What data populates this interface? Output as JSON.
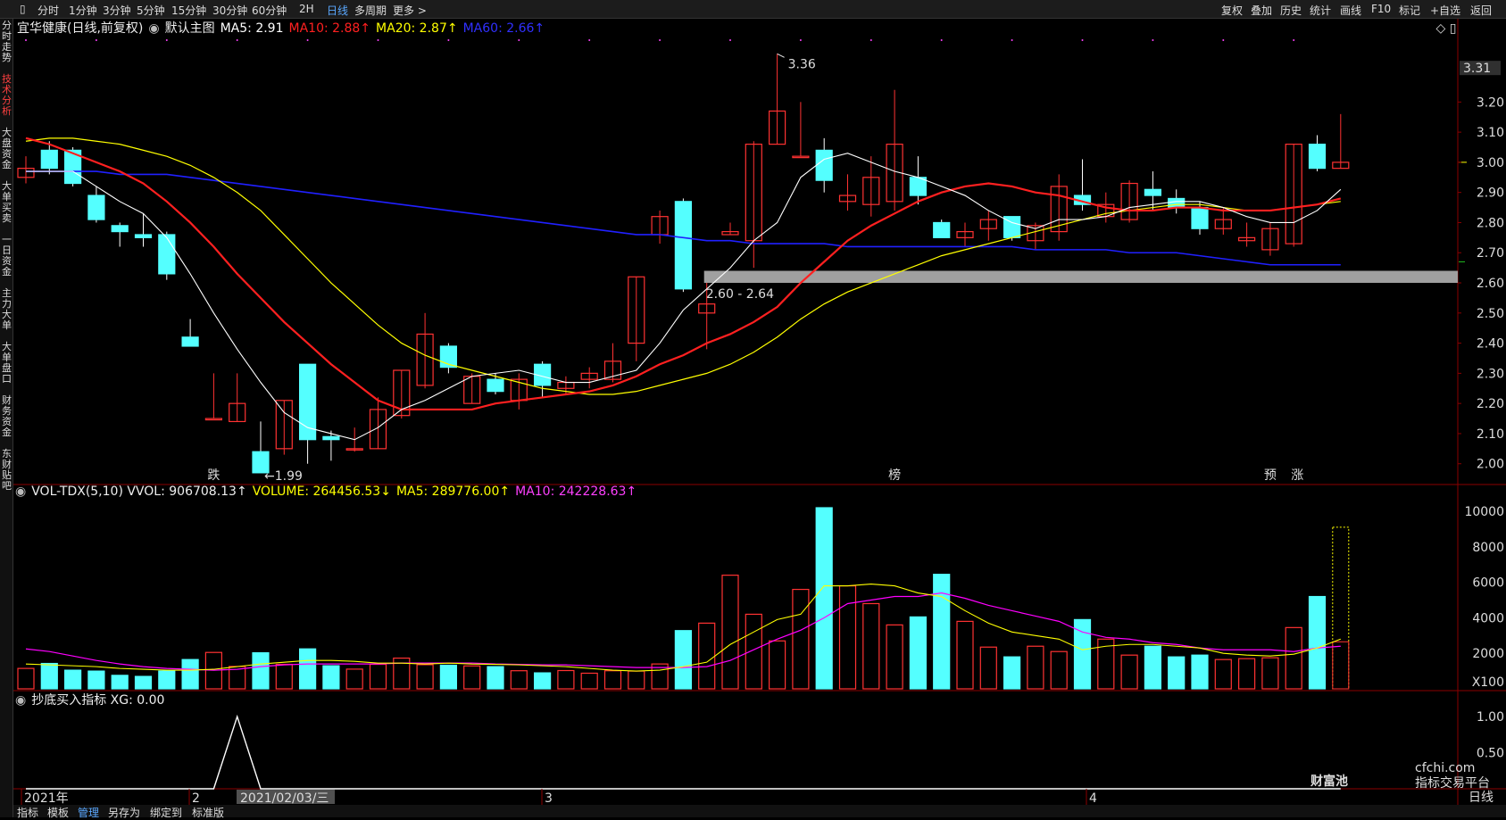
{
  "topbar": {
    "periods": [
      "分时",
      "1分钟",
      "3分钟",
      "5分钟",
      "15分钟",
      "30分钟",
      "60分钟",
      "2H",
      "日线",
      "多周期",
      "更多 >"
    ],
    "selected_period": "日线",
    "right_tools": [
      "复权",
      "叠加",
      "历史",
      "统计",
      "画线",
      "F10",
      "标记",
      "+自选",
      "返回"
    ]
  },
  "leftbar": {
    "items": [
      "分时走势",
      "技术分析",
      "大盘资金",
      "大单买卖",
      "一日资金",
      "主力大单",
      "大单盘口",
      "财务资金",
      "东财贴吧"
    ],
    "selected": "技术分析"
  },
  "main_legend": {
    "stock": "宜华健康(日线,前复权)",
    "template": "默认主图",
    "ma5": "MA5: 2.91",
    "ma10": "MA10: 2.88↑",
    "ma20": "MA20: 2.87↑",
    "ma60": "MA60: 2.66↑"
  },
  "vol_legend": {
    "name": "VOL-TDX(5,10) VVOL: 906708.13↑",
    "volume": "VOLUME: 264456.53↓",
    "ma5": "MA5: 289776.00↑",
    "ma10": "MA10: 242228.63↑"
  },
  "ind_legend": {
    "name": "抄底买入指标 XG: 0.00"
  },
  "annotations": {
    "high": "3.36",
    "low": "←1.99",
    "zone": "2.60 - 2.64",
    "last_price": "3.31",
    "marker_die": "跌",
    "marker_bang": "榜",
    "marker_yu": "预",
    "marker_zhang": "涨"
  },
  "price_axis": [
    "3.20",
    "3.10",
    "3.00",
    "2.90",
    "2.80",
    "2.70",
    "2.60",
    "2.50",
    "2.40",
    "2.30",
    "2.20",
    "2.10",
    "2.00"
  ],
  "vol_axis": [
    "10000",
    "8000",
    "6000",
    "4000",
    "2000",
    "X100"
  ],
  "ind_axis": [
    "1.00",
    "0.50"
  ],
  "date_axis": [
    "2021年",
    "2",
    "3",
    "4"
  ],
  "cursor_date": "2021/02/03/三",
  "period_label": "日线",
  "bottom_tabs": [
    "指标",
    "模板",
    "管理",
    "另存为",
    "绑定到",
    "标准版"
  ],
  "bottom_tabs_selected": "管理",
  "watermark": {
    "brand": "财富池",
    "domain": "cfchi.com",
    "slogan": "指标交易平台"
  },
  "colors": {
    "up": "#ff3232",
    "down": "#54ffff",
    "ma5": "#ffffff",
    "ma10": "#ff2020",
    "ma20": "#ffff00",
    "ma60": "#2020ff",
    "vol_ma10": "#ff00ff"
  },
  "chart_data": {
    "type": "candlestick",
    "candles": [
      [
        2.95,
        2.98,
        3.02,
        2.93
      ],
      [
        3.04,
        2.98,
        3.07,
        2.96
      ],
      [
        3.04,
        2.93,
        3.05,
        2.92
      ],
      [
        2.89,
        2.81,
        2.92,
        2.8
      ],
      [
        2.79,
        2.77,
        2.8,
        2.72
      ],
      [
        2.76,
        2.75,
        2.83,
        2.72
      ],
      [
        2.76,
        2.63,
        2.77,
        2.61
      ],
      [
        2.42,
        2.39,
        2.48,
        2.39
      ],
      [
        2.15,
        2.15,
        2.3,
        2.15
      ],
      [
        2.14,
        2.2,
        2.3,
        2.14
      ],
      [
        2.04,
        1.97,
        2.14,
        1.99
      ],
      [
        2.05,
        2.21,
        2.21,
        2.03
      ],
      [
        2.33,
        2.08,
        2.33,
        2.0
      ],
      [
        2.09,
        2.08,
        2.11,
        2.01
      ],
      [
        2.05,
        2.05,
        2.12,
        2.04
      ],
      [
        2.05,
        2.18,
        2.22,
        2.05
      ],
      [
        2.16,
        2.31,
        2.31,
        2.15
      ],
      [
        2.26,
        2.43,
        2.5,
        2.25
      ],
      [
        2.39,
        2.32,
        2.4,
        2.3
      ],
      [
        2.2,
        2.29,
        2.3,
        2.2
      ],
      [
        2.28,
        2.24,
        2.3,
        2.23
      ],
      [
        2.21,
        2.28,
        2.3,
        2.18
      ],
      [
        2.33,
        2.26,
        2.34,
        2.22
      ],
      [
        2.25,
        2.27,
        2.29,
        2.23
      ],
      [
        2.28,
        2.3,
        2.32,
        2.25
      ],
      [
        2.28,
        2.34,
        2.4,
        2.27
      ],
      [
        2.4,
        2.62,
        2.62,
        2.34
      ],
      [
        2.76,
        2.82,
        2.84,
        2.73
      ],
      [
        2.87,
        2.58,
        2.88,
        2.57
      ],
      [
        2.5,
        2.53,
        2.6,
        2.38
      ],
      [
        2.76,
        2.77,
        2.8,
        2.76
      ],
      [
        2.74,
        3.06,
        3.07,
        2.65
      ],
      [
        3.06,
        3.17,
        3.36,
        3.06
      ],
      [
        3.02,
        3.02,
        3.2,
        3.02
      ],
      [
        3.04,
        2.94,
        3.08,
        2.9
      ],
      [
        2.87,
        2.89,
        2.96,
        2.84
      ],
      [
        2.86,
        2.95,
        3.02,
        2.82
      ],
      [
        2.87,
        3.06,
        3.24,
        2.84
      ],
      [
        2.95,
        2.89,
        3.02,
        2.86
      ],
      [
        2.8,
        2.75,
        2.81,
        2.75
      ],
      [
        2.75,
        2.77,
        2.8,
        2.72
      ],
      [
        2.78,
        2.81,
        2.84,
        2.74
      ],
      [
        2.82,
        2.75,
        2.82,
        2.74
      ],
      [
        2.74,
        2.79,
        2.8,
        2.71
      ],
      [
        2.77,
        2.92,
        2.96,
        2.74
      ],
      [
        2.89,
        2.86,
        3.01,
        2.84
      ],
      [
        2.82,
        2.86,
        2.9,
        2.8
      ],
      [
        2.81,
        2.93,
        2.94,
        2.8
      ],
      [
        2.91,
        2.89,
        2.97,
        2.84
      ],
      [
        2.88,
        2.85,
        2.91,
        2.83
      ],
      [
        2.85,
        2.78,
        2.87,
        2.76
      ],
      [
        2.78,
        2.81,
        2.85,
        2.76
      ],
      [
        2.74,
        2.75,
        2.8,
        2.72
      ],
      [
        2.71,
        2.78,
        2.8,
        2.69
      ],
      [
        2.73,
        3.06,
        3.06,
        2.72
      ],
      [
        3.06,
        2.98,
        3.09,
        2.97
      ],
      [
        2.98,
        3.0,
        3.16,
        2.98
      ]
    ],
    "volume_x100": [
      1150,
      1430,
      1050,
      1000,
      760,
      700,
      1000,
      1650,
      2050,
      1260,
      2030,
      1380,
      2250,
      1300,
      1110,
      1380,
      1730,
      1360,
      1330,
      1290,
      1250,
      1020,
      900,
      1030,
      880,
      1020,
      1000,
      1400,
      3280,
      3700,
      6400,
      4200,
      2700,
      5600,
      10200,
      5800,
      4800,
      3600,
      4050,
      6450,
      3800,
      2350,
      1800,
      2400,
      2100,
      3900,
      2800,
      1900,
      2400,
      1800,
      1900,
      1650,
      1700,
      1750,
      3450,
      5200,
      9100
    ],
    "ma5": [
      2.97,
      2.97,
      2.97,
      2.92,
      2.87,
      2.83,
      2.75,
      2.63,
      2.5,
      2.38,
      2.27,
      2.17,
      2.12,
      2.1,
      2.08,
      2.12,
      2.18,
      2.21,
      2.25,
      2.29,
      2.3,
      2.31,
      2.29,
      2.27,
      2.27,
      2.29,
      2.31,
      2.4,
      2.51,
      2.58,
      2.65,
      2.74,
      2.8,
      2.95,
      3.01,
      3.03,
      3.0,
      2.97,
      2.95,
      2.92,
      2.89,
      2.84,
      2.8,
      2.78,
      2.81,
      2.81,
      2.82,
      2.85,
      2.86,
      2.87,
      2.87,
      2.85,
      2.82,
      2.8,
      2.8,
      2.84,
      2.91
    ],
    "ma10": [
      3.08,
      3.06,
      3.03,
      3.0,
      2.97,
      2.93,
      2.87,
      2.8,
      2.72,
      2.63,
      2.55,
      2.47,
      2.4,
      2.33,
      2.27,
      2.21,
      2.18,
      2.18,
      2.18,
      2.18,
      2.2,
      2.21,
      2.22,
      2.23,
      2.24,
      2.26,
      2.29,
      2.33,
      2.36,
      2.4,
      2.43,
      2.47,
      2.52,
      2.6,
      2.67,
      2.74,
      2.79,
      2.83,
      2.87,
      2.9,
      2.92,
      2.93,
      2.92,
      2.9,
      2.89,
      2.87,
      2.85,
      2.84,
      2.84,
      2.85,
      2.85,
      2.84,
      2.84,
      2.84,
      2.85,
      2.86,
      2.88
    ],
    "ma20": [
      3.07,
      3.08,
      3.08,
      3.07,
      3.06,
      3.04,
      3.02,
      2.99,
      2.95,
      2.9,
      2.84,
      2.76,
      2.68,
      2.6,
      2.53,
      2.46,
      2.4,
      2.36,
      2.33,
      2.31,
      2.29,
      2.27,
      2.25,
      2.24,
      2.23,
      2.23,
      2.24,
      2.26,
      2.28,
      2.3,
      2.33,
      2.37,
      2.42,
      2.48,
      2.53,
      2.57,
      2.6,
      2.63,
      2.66,
      2.69,
      2.71,
      2.73,
      2.75,
      2.77,
      2.79,
      2.81,
      2.83,
      2.84,
      2.85,
      2.86,
      2.86,
      2.85,
      2.84,
      2.84,
      2.85,
      2.86,
      2.87
    ],
    "ma60": [
      2.97,
      2.97,
      2.97,
      2.97,
      2.96,
      2.96,
      2.96,
      2.95,
      2.94,
      2.93,
      2.92,
      2.91,
      2.9,
      2.89,
      2.88,
      2.87,
      2.86,
      2.85,
      2.84,
      2.83,
      2.82,
      2.81,
      2.8,
      2.79,
      2.78,
      2.77,
      2.76,
      2.76,
      2.75,
      2.74,
      2.74,
      2.73,
      2.73,
      2.73,
      2.73,
      2.72,
      2.72,
      2.72,
      2.72,
      2.72,
      2.72,
      2.72,
      2.72,
      2.71,
      2.71,
      2.71,
      2.71,
      2.7,
      2.7,
      2.7,
      2.69,
      2.68,
      2.67,
      2.66,
      2.66,
      2.66,
      2.66
    ],
    "vol_ma5": [
      1400,
      1350,
      1300,
      1250,
      1150,
      1100,
      1050,
      1050,
      1100,
      1250,
      1400,
      1500,
      1600,
      1600,
      1550,
      1450,
      1450,
      1400,
      1450,
      1400,
      1380,
      1350,
      1300,
      1250,
      1150,
      1050,
      1000,
      1050,
      1250,
      1500,
      2500,
      3200,
      3900,
      4200,
      5800,
      5800,
      5900,
      5800,
      5400,
      5200,
      4400,
      3700,
      3200,
      3000,
      2800,
      2200,
      2400,
      2500,
      2500,
      2400,
      2300,
      2000,
      1900,
      1850,
      1950,
      2300,
      2800
    ],
    "vol_ma10": [
      2250,
      2100,
      1850,
      1600,
      1400,
      1250,
      1150,
      1100,
      1050,
      1100,
      1250,
      1350,
      1400,
      1400,
      1400,
      1400,
      1450,
      1450,
      1450,
      1450,
      1400,
      1380,
      1350,
      1350,
      1300,
      1250,
      1200,
      1200,
      1200,
      1250,
      1600,
      2200,
      2800,
      3300,
      4000,
      4800,
      5000,
      5200,
      5200,
      5400,
      5100,
      4700,
      4400,
      4100,
      3800,
      3200,
      2900,
      2800,
      2600,
      2500,
      2300,
      2200,
      2200,
      2200,
      2100,
      2300,
      2400
    ],
    "xg": [
      0,
      0,
      0,
      0,
      0,
      0,
      0,
      0,
      0,
      1,
      0,
      0,
      0,
      0,
      0,
      0,
      0,
      0,
      0,
      0,
      0,
      0,
      0,
      0,
      0,
      0,
      0,
      0,
      0,
      0,
      0,
      0,
      0,
      0,
      0,
      0,
      0,
      0,
      0,
      0,
      0,
      0,
      0,
      0,
      0,
      0,
      0,
      0,
      0,
      0,
      0,
      0,
      0,
      0,
      0,
      0,
      0
    ],
    "support_zone": [
      2.6,
      2.64
    ],
    "price_range": [
      1.94,
      3.42
    ],
    "volume_range": [
      0,
      10000
    ],
    "indicator_range": [
      0,
      1.1
    ]
  }
}
